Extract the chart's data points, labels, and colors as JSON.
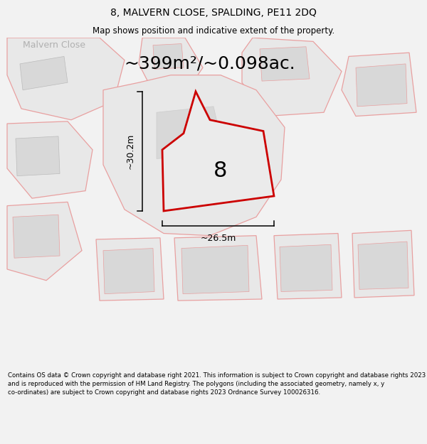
{
  "title_line1": "8, MALVERN CLOSE, SPALDING, PE11 2DQ",
  "title_line2": "Map shows position and indicative extent of the property.",
  "area_label": "~399m²/~0.098ac.",
  "street_label": "Malvern Close",
  "property_number": "8",
  "dim_width": "~26.5m",
  "dim_height": "~30.2m",
  "footer_text": "Contains OS data © Crown copyright and database right 2021. This information is subject to Crown copyright and database rights 2023 and is reproduced with the permission of HM Land Registry. The polygons (including the associated geometry, namely x, y co-ordinates) are subject to Crown copyright and database rights 2023 Ordnance Survey 100026316.",
  "bg_color": "#f2f2f2",
  "map_bg": "#ffffff",
  "bldg_fill": "#d8d8d8",
  "plot_fill": "#e8e8e8",
  "outline_color": "#e8a0a0",
  "property_outline_color": "#cc0000",
  "footer_bg": "#ffffff",
  "title_fontsize": 10,
  "subtitle_fontsize": 8.5,
  "area_fontsize": 18,
  "street_fontsize": 9,
  "number_fontsize": 22,
  "dim_fontsize": 9,
  "footer_fontsize": 6.2
}
